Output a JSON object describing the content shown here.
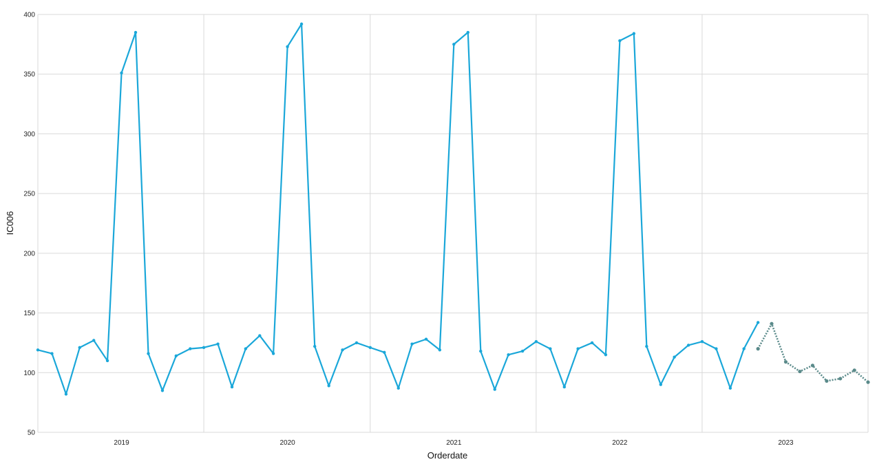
{
  "chart_data": {
    "type": "line",
    "xlabel": "Orderdate",
    "ylabel": "IC006",
    "ylim": [
      50,
      400
    ],
    "xlim": [
      "2018-07-01",
      "2023-07-01"
    ],
    "y_ticks": [
      50,
      100,
      150,
      200,
      250,
      300,
      350,
      400
    ],
    "x_ticks": [
      {
        "date": "2019-01-01",
        "label": "2019"
      },
      {
        "date": "2020-01-01",
        "label": "2020"
      },
      {
        "date": "2021-01-01",
        "label": "2021"
      },
      {
        "date": "2022-01-01",
        "label": "2022"
      },
      {
        "date": "2023-01-01",
        "label": "2023"
      }
    ],
    "grid": true,
    "series": [
      {
        "color": "#1aa7d9",
        "style": "solid",
        "x": [
          "2018-07-01",
          "2018-08-01",
          "2018-09-01",
          "2018-10-01",
          "2018-11-01",
          "2018-12-01",
          "2019-01-01",
          "2019-02-01",
          "2019-03-01",
          "2019-04-01",
          "2019-05-01",
          "2019-06-01",
          "2019-07-01",
          "2019-08-01",
          "2019-09-01",
          "2019-10-01",
          "2019-11-01",
          "2019-12-01",
          "2020-01-01",
          "2020-02-01",
          "2020-03-01",
          "2020-04-01",
          "2020-05-01",
          "2020-06-01",
          "2020-07-01",
          "2020-08-01",
          "2020-09-01",
          "2020-10-01",
          "2020-11-01",
          "2020-12-01",
          "2021-01-01",
          "2021-02-01",
          "2021-03-01",
          "2021-04-01",
          "2021-05-01",
          "2021-06-01",
          "2021-07-01",
          "2021-08-01",
          "2021-09-01",
          "2021-10-01",
          "2021-11-01",
          "2021-12-01",
          "2022-01-01",
          "2022-02-01",
          "2022-03-01",
          "2022-04-01",
          "2022-05-01",
          "2022-06-01",
          "2022-07-01",
          "2022-08-01",
          "2022-09-01",
          "2022-10-01",
          "2022-11-01"
        ],
        "values": [
          119,
          116,
          82,
          121,
          127,
          110,
          351,
          385,
          116,
          85,
          114,
          120,
          121,
          124,
          88,
          120,
          131,
          116,
          373,
          392,
          122,
          89,
          119,
          125,
          121,
          117,
          87,
          124,
          128,
          119,
          375,
          385,
          118,
          86,
          115,
          118,
          126,
          120,
          88,
          120,
          125,
          115,
          378,
          384,
          122,
          90,
          113,
          123,
          126,
          120,
          87,
          120,
          142
        ]
      },
      {
        "color": "#5a8a8a",
        "style": "dotted",
        "x": [
          "2022-11-01",
          "2022-12-01",
          "2023-01-01",
          "2023-02-01",
          "2023-03-01",
          "2023-04-01",
          "2023-05-01",
          "2023-06-01",
          "2023-07-01"
        ],
        "values": [
          120,
          141,
          109,
          101,
          106,
          93,
          95,
          102,
          92
        ]
      }
    ]
  }
}
